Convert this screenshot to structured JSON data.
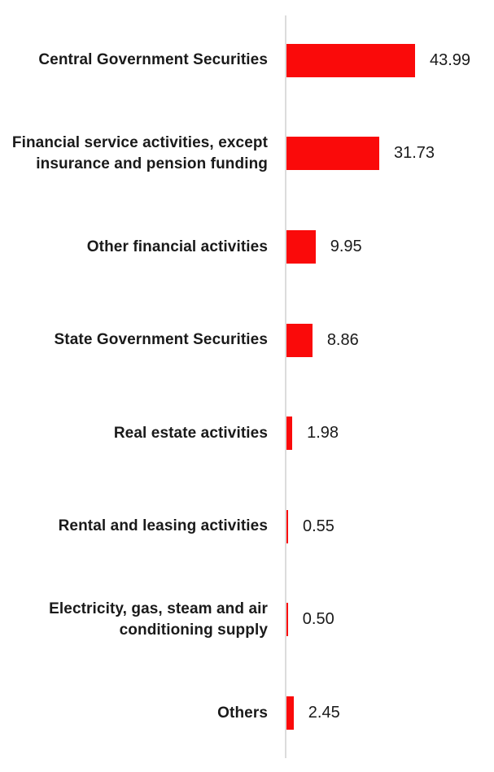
{
  "chart_data": {
    "type": "bar",
    "orientation": "horizontal",
    "title": "",
    "xlabel": "",
    "ylabel": "",
    "grid": false,
    "legend": false,
    "xlim": [
      0,
      50
    ],
    "categories": [
      "Central Government Securities",
      "Financial service activities, except insurance and pension funding",
      "Other financial activities",
      "State Government Securities",
      "Real estate activities",
      "Rental and leasing activities",
      "Electricity, gas, steam and air conditioning supply",
      "Others"
    ],
    "values": [
      43.99,
      31.73,
      9.95,
      8.86,
      1.98,
      0.55,
      0.5,
      2.45
    ],
    "value_labels": [
      "43.99",
      "31.73",
      "9.95",
      "8.86",
      "1.98",
      "0.55",
      "0.50",
      "2.45"
    ],
    "bar_color": "#fa0a0a",
    "axis_line_color": "#dcdcdc",
    "text_color": "#1a1a1a"
  }
}
